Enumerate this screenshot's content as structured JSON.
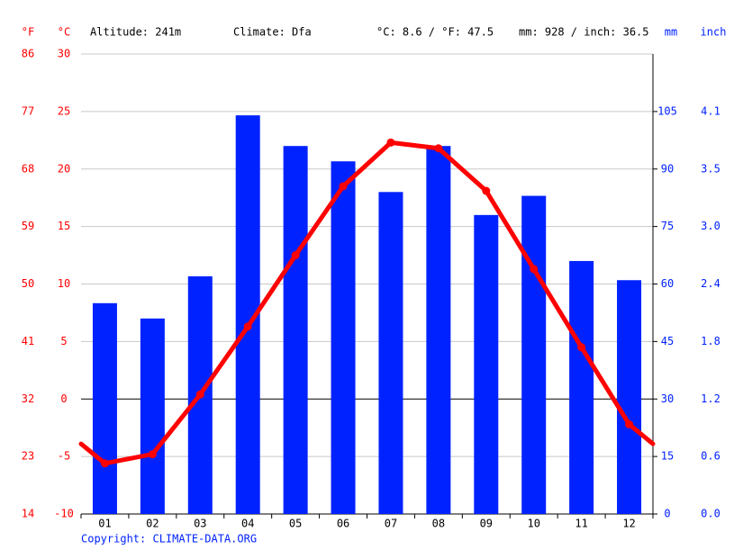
{
  "chart_data": {
    "type": "combo",
    "annotations": [
      "Altitude: 241m",
      "Climate: Dfa",
      "°C: 8.6 / °F: 47.5",
      "mm: 928 / inch: 36.5"
    ],
    "ylabel": "°C",
    "ylabel_f": "°F",
    "y2label": "mm",
    "y2label_inch": "inch",
    "source": "Copyright: CLIMATE-DATA.ORG",
    "categories": [
      "01",
      "02",
      "03",
      "04",
      "05",
      "06",
      "07",
      "08",
      "09",
      "10",
      "11",
      "12"
    ],
    "series": [
      {
        "type": "bar",
        "color": "#0022ff",
        "axis": "y2",
        "values": [
          55,
          51,
          62,
          104,
          96,
          92,
          84,
          96,
          78,
          83,
          66,
          61
        ]
      },
      {
        "type": "line",
        "color": "#ff0000",
        "axis": "y",
        "values": [
          -5.6,
          -4.8,
          0.4,
          6.3,
          12.5,
          18.5,
          22.3,
          21.8,
          18.1,
          11.3,
          4.5,
          -2.2
        ]
      }
    ],
    "ylim": [
      -10,
      30
    ],
    "yticks": [
      -10,
      -5,
      0,
      5,
      10,
      15,
      20,
      25,
      30
    ],
    "ylim_f": [
      14,
      86
    ],
    "yticks_f": [
      14,
      23,
      32,
      41,
      50,
      59,
      68,
      77,
      86
    ],
    "y2lim": [
      0,
      120
    ],
    "y2ticks": [
      0,
      15,
      30,
      45,
      60,
      75,
      90,
      105
    ],
    "y2lim_inch": [
      0,
      4.72
    ],
    "y2ticks_inch": [
      {
        "value": 0,
        "label": "0.0"
      },
      {
        "value": 0.59,
        "label": "0.6"
      },
      {
        "value": 1.18,
        "label": "1.2"
      },
      {
        "value": 1.77,
        "label": "1.8"
      },
      {
        "value": 2.36,
        "label": "2.4"
      },
      {
        "value": 2.95,
        "label": "3.0"
      },
      {
        "value": 3.54,
        "label": "3.5"
      },
      {
        "value": 4.13,
        "label": "4.1"
      }
    ],
    "grid": true
  }
}
